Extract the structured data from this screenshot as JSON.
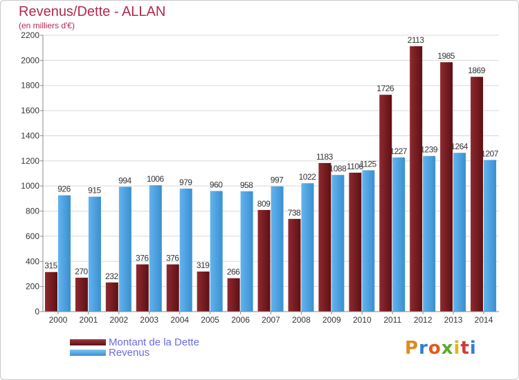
{
  "title": "Revenus/Dette - ALLAN",
  "subtitle": "(en milliers d'€)",
  "colors": {
    "dette": "#7a1f24",
    "revenus": "#4fa3e0",
    "title": "#b0294f",
    "legend_text": "#6a6ae0"
  },
  "logo": {
    "text": "Proxiti",
    "letters": [
      "P",
      "r",
      "o",
      "x",
      "i",
      "t",
      "i"
    ],
    "colors": [
      "#e08a1c",
      "#2f7fd0",
      "#e05a1c",
      "#5aaa2a",
      "#e0b61c",
      "#d03a3a",
      "#2f7fd0"
    ]
  },
  "chart_data": {
    "type": "bar",
    "title": "Revenus/Dette - ALLAN",
    "subtitle": "(en milliers d'€)",
    "xlabel": "",
    "ylabel": "",
    "ylim": [
      0,
      2200
    ],
    "yticks": [
      0,
      200,
      400,
      600,
      800,
      1000,
      1200,
      1400,
      1600,
      1800,
      2000,
      2200
    ],
    "grid": true,
    "legend_position": "bottom-left",
    "categories": [
      "2000",
      "2001",
      "2002",
      "2003",
      "2004",
      "2005",
      "2006",
      "2007",
      "2008",
      "2009",
      "2010",
      "2011",
      "2012",
      "2013",
      "2014"
    ],
    "series": [
      {
        "name": "Montant de la Dette",
        "color": "#7a1f24",
        "values": [
          315,
          270,
          232,
          376,
          376,
          319,
          266,
          809,
          738,
          1183,
          1106,
          1726,
          2113,
          1985,
          1869
        ]
      },
      {
        "name": "Revenus",
        "color": "#4fa3e0",
        "values": [
          926,
          915,
          994,
          1006,
          979,
          960,
          958,
          997,
          1022,
          1088,
          1125,
          1227,
          1239,
          1264,
          1207
        ]
      }
    ]
  }
}
